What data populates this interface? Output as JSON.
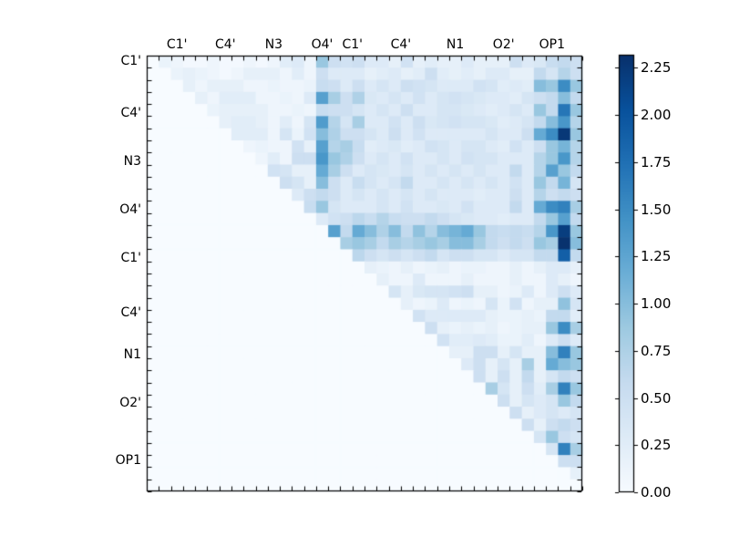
{
  "figure": {
    "background": "#ffffff"
  },
  "chart_data": {
    "type": "heatmap",
    "title": "",
    "xlabel": "",
    "ylabel": "",
    "n": 36,
    "vmin": 0.0,
    "vmax": 2.32,
    "grid": false,
    "colormap": "Blues",
    "colormap_stops": [
      "#f7fbff",
      "#deebf7",
      "#c6dbef",
      "#9ecae1",
      "#6baed6",
      "#4292c6",
      "#2171b5",
      "#08519c",
      "#08306b"
    ],
    "x_ticks": [
      {
        "label": "C1'",
        "pos": 2
      },
      {
        "label": "C4'",
        "pos": 6
      },
      {
        "label": "N3",
        "pos": 10
      },
      {
        "label": "O4'",
        "pos": 14
      },
      {
        "label": "C1'",
        "pos": 16.5
      },
      {
        "label": "C4'",
        "pos": 20.5
      },
      {
        "label": "N1",
        "pos": 25
      },
      {
        "label": "O2'",
        "pos": 29
      },
      {
        "label": "OP1",
        "pos": 33
      }
    ],
    "y_ticks": [
      {
        "label": "C1'",
        "pos": 0
      },
      {
        "label": "C4'",
        "pos": 4.3
      },
      {
        "label": "N3",
        "pos": 8.3
      },
      {
        "label": "O4'",
        "pos": 12.3
      },
      {
        "label": "C1'",
        "pos": 16.3
      },
      {
        "label": "C4'",
        "pos": 20.8
      },
      {
        "label": "N1",
        "pos": 24.3
      },
      {
        "label": "O2'",
        "pos": 28.3
      },
      {
        "label": "OP1",
        "pos": 33
      }
    ],
    "matrix_rows": [
      {
        "start": 1,
        "v": [
          0.15,
          0.1,
          0.05,
          0.05,
          0.1,
          0.05,
          0.05,
          0.1,
          0.05,
          0.1,
          0.25,
          0.3,
          0.1,
          0.9,
          0.5,
          0.45,
          0.5,
          0.3,
          0.3,
          0.2,
          0.45,
          0.2,
          0.25,
          0.2,
          0.2,
          0.3,
          0.2,
          0.2,
          0.2,
          0.5,
          0.3,
          0.35,
          0.55,
          0.6,
          0.5
        ]
      },
      {
        "start": 2,
        "v": [
          0.15,
          0.2,
          0.15,
          0.1,
          0.05,
          0.1,
          0.2,
          0.2,
          0.2,
          0.1,
          0.25,
          0.1,
          0.5,
          0.3,
          0.3,
          0.3,
          0.2,
          0.25,
          0.3,
          0.2,
          0.25,
          0.5,
          0.25,
          0.2,
          0.25,
          0.2,
          0.3,
          0.3,
          0.2,
          0.2,
          0.6,
          0.4,
          0.7,
          0.5
        ]
      },
      {
        "start": 3,
        "v": [
          0.2,
          0.1,
          0.2,
          0.2,
          0.2,
          0.1,
          0.1,
          0.15,
          0.1,
          0.1,
          0.15,
          0.55,
          0.5,
          0.3,
          0.5,
          0.3,
          0.4,
          0.3,
          0.5,
          0.45,
          0.4,
          0.3,
          0.3,
          0.3,
          0.45,
          0.4,
          0.25,
          0.3,
          0.25,
          1.0,
          0.9,
          1.5,
          0.9
        ]
      },
      {
        "start": 4,
        "v": [
          0.2,
          0.1,
          0.25,
          0.25,
          0.25,
          0.1,
          0.1,
          0.15,
          0.1,
          0.3,
          1.3,
          0.8,
          0.5,
          0.75,
          0.35,
          0.3,
          0.4,
          0.3,
          0.45,
          0.3,
          0.4,
          0.45,
          0.4,
          0.35,
          0.3,
          0.3,
          0.25,
          0.4,
          0.5,
          0.6,
          1.0,
          0.6
        ]
      },
      {
        "start": 5,
        "v": [
          0.15,
          0.2,
          0.2,
          0.2,
          0.2,
          0.1,
          0.1,
          0.15,
          0.1,
          0.55,
          0.5,
          0.5,
          0.4,
          0.3,
          0.4,
          0.3,
          0.5,
          0.3,
          0.3,
          0.4,
          0.4,
          0.35,
          0.3,
          0.25,
          0.3,
          0.4,
          0.3,
          0.9,
          0.6,
          1.7,
          0.9
        ]
      },
      {
        "start": 6,
        "v": [
          0.2,
          0.25,
          0.25,
          0.2,
          0.1,
          0.25,
          0.1,
          0.4,
          1.35,
          0.7,
          0.4,
          0.8,
          0.3,
          0.3,
          0.45,
          0.3,
          0.5,
          0.35,
          0.4,
          0.45,
          0.4,
          0.4,
          0.35,
          0.25,
          0.3,
          0.4,
          0.6,
          1.0,
          1.4,
          0.7
        ]
      },
      {
        "start": 7,
        "v": [
          0.25,
          0.25,
          0.25,
          0.1,
          0.4,
          0.15,
          0.45,
          1.0,
          0.75,
          0.5,
          0.5,
          0.4,
          0.3,
          0.5,
          0.3,
          0.45,
          0.3,
          0.3,
          0.3,
          0.3,
          0.3,
          0.4,
          0.3,
          0.3,
          0.5,
          1.2,
          1.5,
          2.25,
          0.9
        ]
      },
      {
        "start": 8,
        "v": [
          0.1,
          0.15,
          0.1,
          0.1,
          0.45,
          0.2,
          1.3,
          0.7,
          0.8,
          0.55,
          0.25,
          0.3,
          0.35,
          0.25,
          0.3,
          0.45,
          0.4,
          0.3,
          0.4,
          0.4,
          0.3,
          0.25,
          0.45,
          0.3,
          0.5,
          0.9,
          1.1,
          0.7
        ]
      },
      {
        "start": 9,
        "v": [
          0.1,
          0.25,
          0.1,
          0.5,
          0.5,
          1.4,
          0.9,
          0.75,
          0.5,
          0.3,
          0.4,
          0.3,
          0.45,
          0.3,
          0.3,
          0.4,
          0.3,
          0.45,
          0.4,
          0.4,
          0.3,
          0.3,
          0.3,
          0.7,
          0.9,
          1.4,
          0.7
        ]
      },
      {
        "start": 10,
        "v": [
          0.45,
          0.4,
          0.2,
          0.2,
          1.2,
          0.8,
          0.5,
          0.3,
          0.4,
          0.35,
          0.3,
          0.4,
          0.3,
          0.4,
          0.3,
          0.4,
          0.3,
          0.4,
          0.3,
          0.3,
          0.6,
          0.3,
          0.7,
          1.3,
          0.9,
          0.6
        ]
      },
      {
        "start": 11,
        "v": [
          0.5,
          0.4,
          0.2,
          1.0,
          0.5,
          0.3,
          0.55,
          0.4,
          0.3,
          0.4,
          0.6,
          0.3,
          0.3,
          0.4,
          0.3,
          0.4,
          0.3,
          0.4,
          0.3,
          0.45,
          0.3,
          0.9,
          0.6,
          1.1,
          0.4
        ]
      },
      {
        "start": 12,
        "v": [
          0.3,
          0.5,
          0.6,
          0.5,
          0.3,
          0.4,
          0.3,
          0.4,
          0.3,
          0.4,
          0.3,
          0.4,
          0.3,
          0.3,
          0.3,
          0.25,
          0.3,
          0.3,
          0.5,
          0.3,
          0.7,
          0.5,
          0.6,
          0.5
        ]
      },
      {
        "start": 13,
        "v": [
          0.55,
          0.9,
          0.4,
          0.3,
          0.3,
          0.3,
          0.4,
          0.3,
          0.45,
          0.3,
          0.3,
          0.35,
          0.3,
          0.45,
          0.3,
          0.3,
          0.3,
          0.6,
          0.3,
          1.2,
          1.5,
          1.6,
          0.8
        ]
      },
      {
        "start": 14,
        "v": [
          0.3,
          0.45,
          0.5,
          0.65,
          0.55,
          0.7,
          0.55,
          0.5,
          0.5,
          0.6,
          0.5,
          0.4,
          0.35,
          0.3,
          0.3,
          0.25,
          0.3,
          0.3,
          0.6,
          0.9,
          1.3,
          0.6
        ]
      },
      {
        "start": 15,
        "v": [
          1.3,
          0.6,
          1.2,
          1.0,
          0.75,
          1.0,
          0.6,
          0.95,
          0.7,
          1.0,
          1.1,
          1.2,
          0.9,
          0.6,
          0.55,
          0.6,
          0.55,
          0.7,
          1.4,
          2.2,
          0.9
        ]
      },
      {
        "start": 16,
        "v": [
          0.8,
          0.9,
          0.8,
          0.6,
          0.8,
          0.7,
          0.8,
          0.9,
          0.8,
          1.0,
          1.0,
          0.8,
          0.6,
          0.5,
          0.6,
          0.5,
          0.9,
          0.8,
          2.3,
          1.0
        ]
      },
      {
        "start": 17,
        "v": [
          0.65,
          0.5,
          0.4,
          0.5,
          0.4,
          0.5,
          0.6,
          0.4,
          0.5,
          0.5,
          0.4,
          0.4,
          0.3,
          0.4,
          0.4,
          0.6,
          0.6,
          1.9,
          0.6
        ]
      },
      {
        "start": 18,
        "v": [
          0.2,
          0.15,
          0.1,
          0.2,
          0.1,
          0.15,
          0.2,
          0.1,
          0.15,
          0.15,
          0.1,
          0.1,
          0.2,
          0.1,
          0.2,
          0.3,
          0.3,
          0.2
        ]
      },
      {
        "start": 19,
        "v": [
          0.2,
          0.1,
          0.1,
          0.3,
          0.1,
          0.1,
          0.1,
          0.2,
          0.1,
          0.1,
          0.1,
          0.2,
          0.1,
          0.1,
          0.3,
          0.2,
          0.1
        ]
      },
      {
        "start": 20,
        "v": [
          0.4,
          0.2,
          0.35,
          0.4,
          0.4,
          0.45,
          0.5,
          0.2,
          0.2,
          0.1,
          0.15,
          0.3,
          0.1,
          0.3,
          0.5,
          0.3
        ]
      },
      {
        "start": 21,
        "v": [
          0.2,
          0.1,
          0.15,
          0.3,
          0.1,
          0.15,
          0.1,
          0.4,
          0.15,
          0.45,
          0.1,
          0.2,
          0.2,
          0.95,
          0.4
        ]
      },
      {
        "start": 22,
        "v": [
          0.45,
          0.3,
          0.3,
          0.3,
          0.3,
          0.3,
          0.2,
          0.15,
          0.15,
          0.2,
          0.15,
          0.6,
          0.6,
          0.25
        ]
      },
      {
        "start": 23,
        "v": [
          0.5,
          0.2,
          0.15,
          0.2,
          0.15,
          0.2,
          0.1,
          0.15,
          0.2,
          0.2,
          0.9,
          1.5,
          0.8
        ]
      },
      {
        "start": 24,
        "v": [
          0.45,
          0.25,
          0.25,
          0.3,
          0.25,
          0.15,
          0.15,
          0.25,
          0.1,
          0.3,
          0.5,
          0.3
        ]
      },
      {
        "start": 25,
        "v": [
          0.2,
          0.2,
          0.5,
          0.5,
          0.2,
          0.4,
          0.2,
          0.2,
          1.0,
          1.6,
          0.9
        ]
      },
      {
        "start": 26,
        "v": [
          0.3,
          0.5,
          0.2,
          0.4,
          0.2,
          0.8,
          0.2,
          1.2,
          1.0,
          0.9
        ]
      },
      {
        "start": 27,
        "v": [
          0.5,
          0.2,
          0.5,
          0.2,
          0.6,
          0.2,
          0.4,
          0.6,
          0.5
        ]
      },
      {
        "start": 28,
        "v": [
          0.8,
          0.4,
          0.2,
          0.5,
          0.25,
          0.8,
          1.6,
          0.9
        ]
      },
      {
        "start": 29,
        "v": [
          0.5,
          0.2,
          0.4,
          0.3,
          0.4,
          0.9,
          0.6
        ]
      },
      {
        "start": 30,
        "v": [
          0.5,
          0.2,
          0.3,
          0.4,
          0.3,
          0.4
        ]
      },
      {
        "start": 31,
        "v": [
          0.5,
          0.2,
          0.5,
          0.6,
          0.5
        ]
      },
      {
        "start": 32,
        "v": [
          0.4,
          0.9,
          0.5,
          0.4
        ]
      },
      {
        "start": 33,
        "v": [
          0.4,
          1.6,
          0.8
        ]
      },
      {
        "start": 34,
        "v": [
          0.5,
          0.5
        ]
      },
      {
        "start": 35,
        "v": [
          0.2
        ]
      },
      {
        "start": 36,
        "v": []
      }
    ],
    "colorbar": {
      "position": "right",
      "tick_labels": [
        "0.00",
        "0.25",
        "0.50",
        "0.75",
        "1.00",
        "1.25",
        "1.50",
        "1.75",
        "2.00",
        "2.25"
      ],
      "tick_values": [
        0,
        0.25,
        0.5,
        0.75,
        1.0,
        1.25,
        1.5,
        1.75,
        2.0,
        2.25
      ]
    }
  }
}
